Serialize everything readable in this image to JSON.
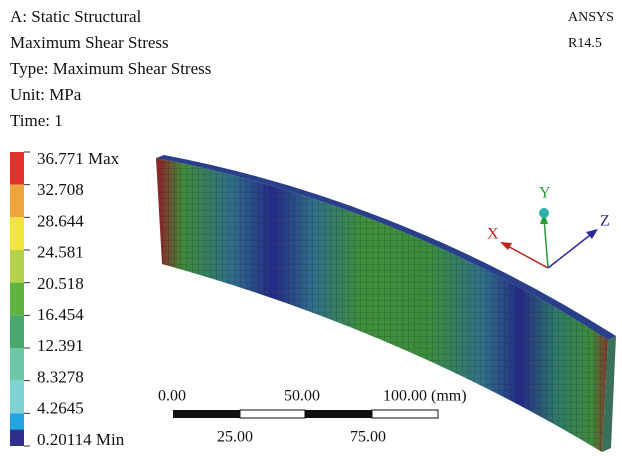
{
  "header": {
    "lines": [
      "A: Static Structural",
      "Maximum Shear Stress",
      "Type: Maximum Shear Stress",
      "Unit: MPa",
      "Time: 1"
    ]
  },
  "product": {
    "name": "ANSYS",
    "version": "R14.5"
  },
  "legend": {
    "labels": [
      "36.771 Max",
      "32.708",
      "28.644",
      "24.581",
      "20.518",
      "16.454",
      "12.391",
      "8.3278",
      "4.2645",
      "0.20114 Min"
    ],
    "colors": [
      "#e3302b",
      "#f0a53a",
      "#f2e63a",
      "#b4d24a",
      "#5fb43f",
      "#4aa86e",
      "#6cc6a8",
      "#7fd3d3",
      "#22a6e2",
      "#2f2f8f"
    ]
  },
  "scale_bar": {
    "top_labels": [
      "0.00",
      "50.00",
      "100.00 (mm)"
    ],
    "bottom_labels": [
      "25.00",
      "75.00"
    ]
  },
  "triad": {
    "x": "X",
    "y": "Y",
    "z": "Z"
  }
}
